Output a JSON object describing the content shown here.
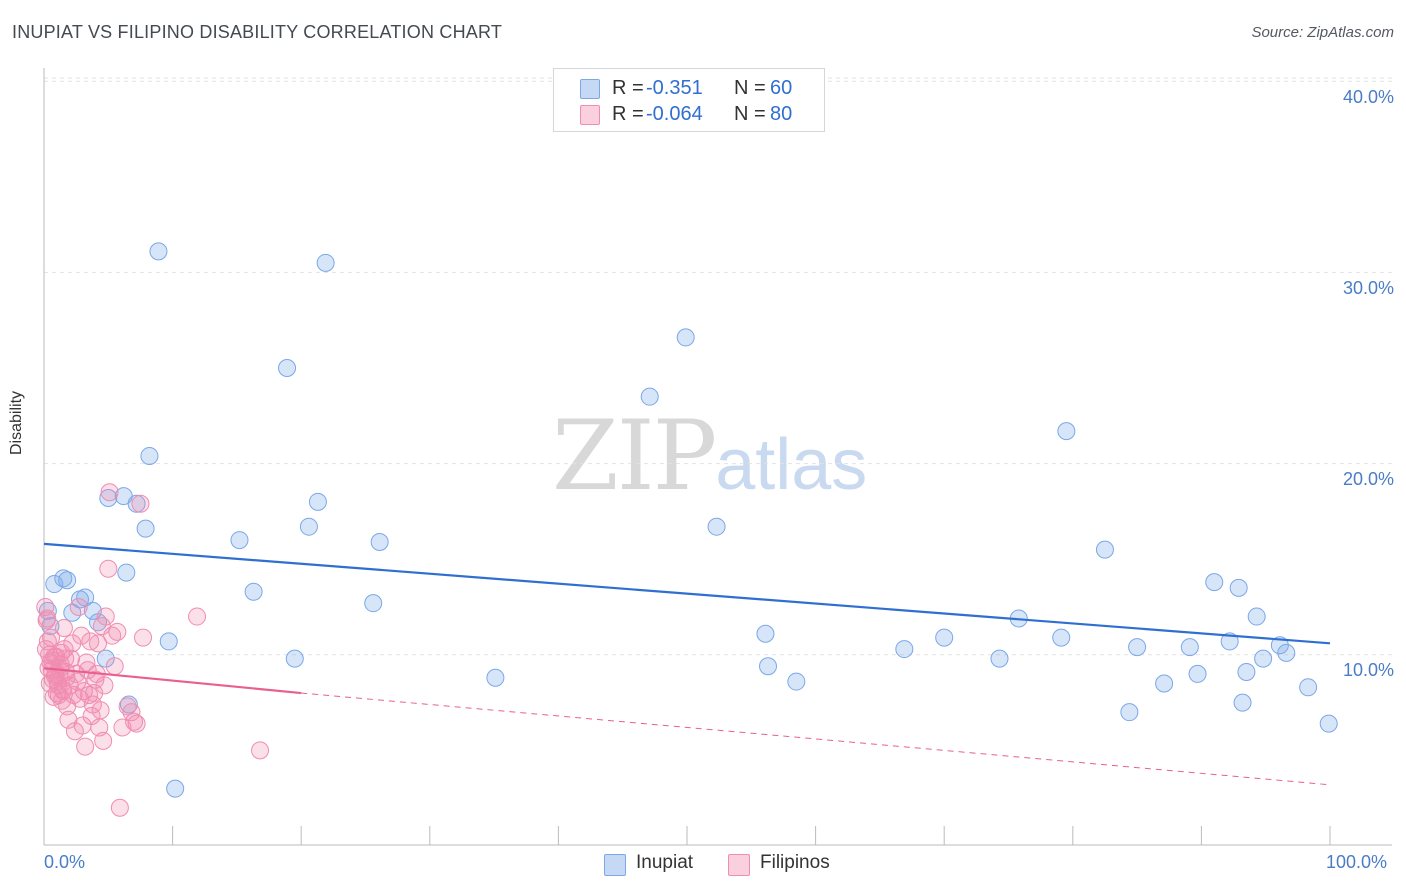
{
  "title": "INUPIAT VS FILIPINO DISABILITY CORRELATION CHART",
  "source": "Source: ZipAtlas.com",
  "watermark": {
    "zip": "ZIP",
    "atlas": "atlas"
  },
  "legend": {
    "rows": [
      {
        "label": "R =",
        "r": "-0.351",
        "n_label": "N =",
        "n": "60"
      },
      {
        "label": "R =",
        "r": "-0.064",
        "n_label": "N =",
        "n": "80"
      }
    ]
  },
  "bottom_legend": [
    "Inupiat",
    "Filipinos"
  ],
  "colors": {
    "inupiat": "#7aa8e8",
    "inupiat_line": "#2f6fd0",
    "filipinos": "#f08db0",
    "filipinos_line": "#e8608f"
  },
  "chart_data": {
    "type": "scatter",
    "title": "INUPIAT VS FILIPINO DISABILITY CORRELATION CHART",
    "xlabel": "",
    "ylabel": "Disability",
    "xlim": [
      0,
      100
    ],
    "ylim": [
      0,
      42
    ],
    "x_tick_labels": [
      "0.0%",
      "100.0%"
    ],
    "y_ticks": [
      10,
      20,
      30,
      40
    ],
    "y_tick_labels": [
      "10.0%",
      "20.0%",
      "30.0%",
      "40.0%"
    ],
    "grid": true,
    "legend_position": "top-center",
    "series": [
      {
        "name": "Inupiat",
        "r": -0.351,
        "n": 60,
        "trend": {
          "x": [
            0,
            100
          ],
          "y": [
            15.8,
            10.6
          ]
        },
        "points": [
          [
            0.3,
            12.3
          ],
          [
            0.8,
            13.7
          ],
          [
            1.5,
            14.0
          ],
          [
            1.8,
            13.9
          ],
          [
            2.2,
            12.2
          ],
          [
            2.8,
            12.9
          ],
          [
            3.2,
            13.0
          ],
          [
            3.8,
            12.3
          ],
          [
            4.2,
            11.7
          ],
          [
            4.8,
            9.8
          ],
          [
            5.0,
            18.2
          ],
          [
            6.2,
            18.3
          ],
          [
            6.4,
            14.3
          ],
          [
            6.6,
            7.4
          ],
          [
            7.2,
            17.9
          ],
          [
            7.9,
            16.6
          ],
          [
            8.2,
            20.4
          ],
          [
            8.9,
            31.1
          ],
          [
            9.7,
            10.7
          ],
          [
            10.2,
            3.0
          ],
          [
            15.2,
            16.0
          ],
          [
            16.3,
            13.3
          ],
          [
            18.9,
            25.0
          ],
          [
            19.5,
            9.8
          ],
          [
            20.6,
            16.7
          ],
          [
            21.3,
            18.0
          ],
          [
            21.9,
            30.5
          ],
          [
            25.6,
            12.7
          ],
          [
            26.1,
            15.9
          ],
          [
            35.1,
            8.8
          ],
          [
            47.1,
            23.5
          ],
          [
            49.9,
            26.6
          ],
          [
            52.3,
            16.7
          ],
          [
            56.1,
            11.1
          ],
          [
            56.3,
            9.4
          ],
          [
            58.5,
            8.6
          ],
          [
            66.9,
            10.3
          ],
          [
            70.0,
            10.9
          ],
          [
            74.3,
            9.8
          ],
          [
            75.8,
            11.9
          ],
          [
            79.1,
            10.9
          ],
          [
            79.5,
            21.7
          ],
          [
            82.5,
            15.5
          ],
          [
            84.4,
            7.0
          ],
          [
            85.0,
            10.4
          ],
          [
            87.1,
            8.5
          ],
          [
            89.1,
            10.4
          ],
          [
            89.7,
            9.0
          ],
          [
            91.0,
            13.8
          ],
          [
            92.2,
            10.7
          ],
          [
            92.9,
            13.5
          ],
          [
            93.2,
            7.5
          ],
          [
            93.5,
            9.1
          ],
          [
            94.3,
            12.0
          ],
          [
            94.8,
            9.8
          ],
          [
            96.1,
            10.5
          ],
          [
            96.6,
            10.1
          ],
          [
            98.3,
            8.3
          ],
          [
            99.9,
            6.4
          ],
          [
            0.5,
            11.5
          ]
        ]
      },
      {
        "name": "Filipinos",
        "r": -0.064,
        "n": 80,
        "trend": {
          "x": [
            0,
            20
          ],
          "y": [
            9.3,
            8.0
          ]
        },
        "trend_dashed": {
          "x": [
            20,
            100
          ],
          "y": [
            8.0,
            3.2
          ]
        },
        "points": [
          [
            0.1,
            12.5
          ],
          [
            0.2,
            11.8
          ],
          [
            0.3,
            10.7
          ],
          [
            0.4,
            10.0
          ],
          [
            0.5,
            9.6
          ],
          [
            0.6,
            9.2
          ],
          [
            0.7,
            8.7
          ],
          [
            0.8,
            9.9
          ],
          [
            0.9,
            9.0
          ],
          [
            1.0,
            8.0
          ],
          [
            1.1,
            8.4
          ],
          [
            1.2,
            8.9
          ],
          [
            1.3,
            9.5
          ],
          [
            1.4,
            7.6
          ],
          [
            1.5,
            8.1
          ],
          [
            1.6,
            10.3
          ],
          [
            1.7,
            9.1
          ],
          [
            1.8,
            7.3
          ],
          [
            1.9,
            6.6
          ],
          [
            2.0,
            8.4
          ],
          [
            2.1,
            9.8
          ],
          [
            2.2,
            10.6
          ],
          [
            2.3,
            7.9
          ],
          [
            2.4,
            6.0
          ],
          [
            2.5,
            9.0
          ],
          [
            2.6,
            8.6
          ],
          [
            2.7,
            12.5
          ],
          [
            2.8,
            7.7
          ],
          [
            2.9,
            11.0
          ],
          [
            3.0,
            6.3
          ],
          [
            3.1,
            8.1
          ],
          [
            3.2,
            5.2
          ],
          [
            3.3,
            9.6
          ],
          [
            3.4,
            9.2
          ],
          [
            3.5,
            7.9
          ],
          [
            3.6,
            10.7
          ],
          [
            3.7,
            6.8
          ],
          [
            3.8,
            7.4
          ],
          [
            3.9,
            8.0
          ],
          [
            4.0,
            8.7
          ],
          [
            4.1,
            9.0
          ],
          [
            4.2,
            10.6
          ],
          [
            4.3,
            6.2
          ],
          [
            4.4,
            7.1
          ],
          [
            4.5,
            11.5
          ],
          [
            4.6,
            5.5
          ],
          [
            4.7,
            8.4
          ],
          [
            4.8,
            12.0
          ],
          [
            5.0,
            14.5
          ],
          [
            5.1,
            18.5
          ],
          [
            5.3,
            11.0
          ],
          [
            5.5,
            9.4
          ],
          [
            5.7,
            11.2
          ],
          [
            5.9,
            2.0
          ],
          [
            6.1,
            6.2
          ],
          [
            6.5,
            7.3
          ],
          [
            6.8,
            7.0
          ],
          [
            7.0,
            6.5
          ],
          [
            7.2,
            6.4
          ],
          [
            7.5,
            17.9
          ],
          [
            7.7,
            10.9
          ],
          [
            11.9,
            12.0
          ],
          [
            16.8,
            5.0
          ],
          [
            0.15,
            10.3
          ],
          [
            0.25,
            11.9
          ],
          [
            0.35,
            9.3
          ],
          [
            0.45,
            8.5
          ],
          [
            0.55,
            10.9
          ],
          [
            0.65,
            9.7
          ],
          [
            0.75,
            7.8
          ],
          [
            0.85,
            8.9
          ],
          [
            0.95,
            9.9
          ],
          [
            1.05,
            8.6
          ],
          [
            1.15,
            7.9
          ],
          [
            1.25,
            9.3
          ],
          [
            1.35,
            10.1
          ],
          [
            1.45,
            8.2
          ],
          [
            1.55,
            11.4
          ],
          [
            1.65,
            9.8
          ],
          [
            1.75,
            8.8
          ]
        ]
      }
    ]
  }
}
